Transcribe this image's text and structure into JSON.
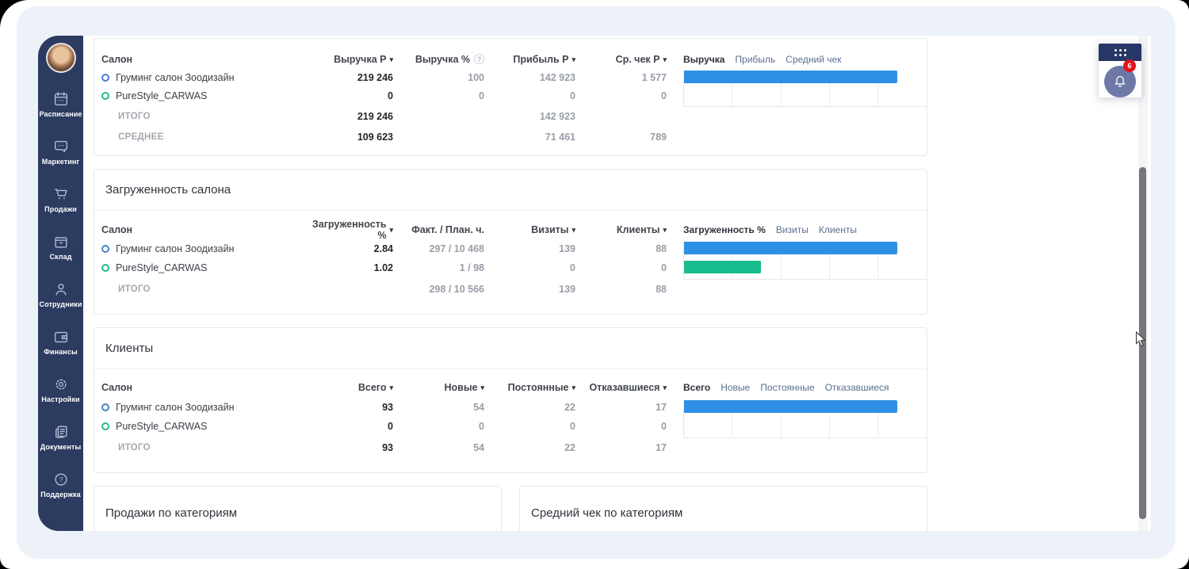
{
  "colors": {
    "sidebar_bg": "#2c3b60",
    "canvas_bg": "#edf1f8",
    "bar_blue": "#2e90e5",
    "bar_green": "#19bd8d",
    "ring_blue": "#4a7fd0",
    "ring_green": "#25b98c",
    "badge_red": "#e3131f",
    "panel_navy": "#263765"
  },
  "sidebar": {
    "items": [
      {
        "label": "Расписание",
        "icon": "calendar-icon"
      },
      {
        "label": "Маркетинг",
        "icon": "chat-icon"
      },
      {
        "label": "Продажи",
        "icon": "cart-icon"
      },
      {
        "label": "Склад",
        "icon": "box-icon"
      },
      {
        "label": "Сотрудники",
        "icon": "person-icon"
      },
      {
        "label": "Финансы",
        "icon": "wallet-icon"
      },
      {
        "label": "Настройки",
        "icon": "gear-icon"
      },
      {
        "label": "Документы",
        "icon": "documents-icon"
      },
      {
        "label": "Поддержка",
        "icon": "question-icon"
      }
    ]
  },
  "widgets": {
    "apps_button": {
      "icon": "apps-grid-icon"
    },
    "notifications": {
      "icon": "bell-icon",
      "badge": "6"
    }
  },
  "tables": [
    {
      "title": "",
      "columns": [
        {
          "label": "Салон"
        },
        {
          "label": "Выручка Р",
          "sort": true
        },
        {
          "label": "Выручка %",
          "info": true
        },
        {
          "label": "Прибыль Р",
          "sort": true
        },
        {
          "label": "Ср. чек Р",
          "sort": true
        }
      ],
      "legend": [
        "Выручка",
        "Прибыль",
        "Средний чек"
      ],
      "rows": [
        {
          "name": "Груминг салон Зоодизайн",
          "ring": "#4a7fd0",
          "values": [
            "219 246",
            "100",
            "142 923",
            "1 577"
          ]
        },
        {
          "name": "PureStyle_CARWAS",
          "ring": "#25b98c",
          "values": [
            "0",
            "0",
            "0",
            "0"
          ]
        }
      ],
      "totals": [
        {
          "label": "ИТОГО",
          "values": [
            "219 246",
            "",
            "142 923",
            ""
          ]
        },
        {
          "label": "СРЕДНЕЕ",
          "values": [
            "109 623",
            "",
            "71 461",
            "789"
          ]
        }
      ]
    },
    {
      "title": "Загруженность салона",
      "columns": [
        {
          "label": "Салон"
        },
        {
          "label": "Загруженность %",
          "sort": true
        },
        {
          "label": "Факт. / План. ч."
        },
        {
          "label": "Визиты",
          "sort": true
        },
        {
          "label": "Клиенты",
          "sort": true
        }
      ],
      "legend": [
        "Загруженность %",
        "Визиты",
        "Клиенты"
      ],
      "rows": [
        {
          "name": "Груминг салон Зоодизайн",
          "ring": "#4a7fd0",
          "values": [
            "2.84",
            "297 / 10 468",
            "139",
            "88"
          ]
        },
        {
          "name": "PureStyle_CARWAS",
          "ring": "#25b98c",
          "values": [
            "1.02",
            "1 / 98",
            "0",
            "0"
          ]
        }
      ],
      "totals": [
        {
          "label": "ИТОГО",
          "values": [
            "",
            "298 / 10 566",
            "139",
            "88"
          ]
        }
      ]
    },
    {
      "title": "Клиенты",
      "columns": [
        {
          "label": "Салон"
        },
        {
          "label": "Всего",
          "sort": true
        },
        {
          "label": "Новые",
          "sort": true
        },
        {
          "label": "Постоянные",
          "sort": true
        },
        {
          "label": "Отказавшиеся",
          "sort": true
        }
      ],
      "legend": [
        "Всего",
        "Новые",
        "Постоянные",
        "Отказавшиеся"
      ],
      "rows": [
        {
          "name": "Груминг салон Зоодизайн",
          "ring": "#4a7fd0",
          "values": [
            "93",
            "54",
            "22",
            "17"
          ]
        },
        {
          "name": "PureStyle_CARWAS",
          "ring": "#25b98c",
          "values": [
            "0",
            "0",
            "0",
            "0"
          ]
        }
      ],
      "totals": [
        {
          "label": "ИТОГО",
          "values": [
            "93",
            "54",
            "22",
            "17"
          ]
        }
      ]
    }
  ],
  "bottom_cards": [
    {
      "title": "Продажи по категориям"
    },
    {
      "title": "Средний чек по категориям"
    }
  ],
  "chart_data": [
    {
      "type": "bar",
      "title": "Выручка по салонам",
      "metric_tabs": [
        "Выручка",
        "Прибыль",
        "Средний чек"
      ],
      "active_tab": "Выручка",
      "categories": [
        "Груминг салон Зоодизайн",
        "PureStyle_CARWAS"
      ],
      "values": [
        219246,
        0
      ],
      "colors": [
        "#2e90e5",
        "#19bd8d"
      ],
      "xlim": [
        0,
        250000
      ],
      "grid": true,
      "legend_position": "top"
    },
    {
      "type": "bar",
      "title": "Загруженность % по салонам",
      "metric_tabs": [
        "Загруженность %",
        "Визиты",
        "Клиенты"
      ],
      "active_tab": "Загруженность %",
      "categories": [
        "Груминг салон Зоодизайн",
        "PureStyle_CARWAS"
      ],
      "values": [
        2.84,
        1.02
      ],
      "colors": [
        "#2e90e5",
        "#19bd8d"
      ],
      "xlim": [
        0,
        3.2
      ],
      "grid": true,
      "legend_position": "top"
    },
    {
      "type": "bar",
      "title": "Клиенты всего по салонам",
      "metric_tabs": [
        "Всего",
        "Новые",
        "Постоянные",
        "Отказавшиеся"
      ],
      "active_tab": "Всего",
      "categories": [
        "Груминг салон Зоодизайн",
        "PureStyle_CARWAS"
      ],
      "values": [
        93,
        0
      ],
      "colors": [
        "#2e90e5",
        "#19bd8d"
      ],
      "xlim": [
        0,
        105
      ],
      "grid": true,
      "legend_position": "top"
    }
  ]
}
